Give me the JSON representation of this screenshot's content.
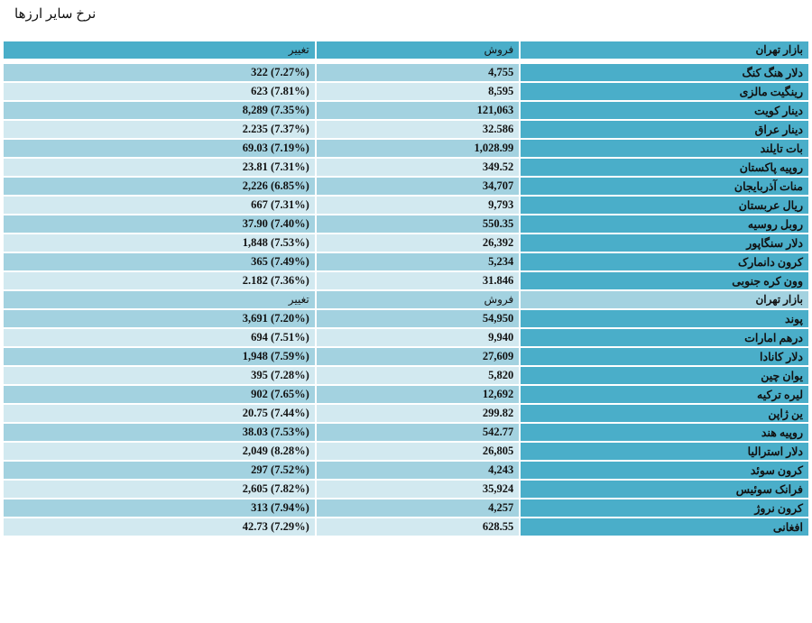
{
  "page": {
    "title": "نرخ سایر ارزها"
  },
  "header": {
    "market": "بازار تهران",
    "sell": "فروش",
    "change": "تغییر"
  },
  "subheader": {
    "market": "بازار تهران",
    "sell": "فروش",
    "change": "تغییر"
  },
  "group1": [
    {
      "name": "دلار هنگ کنگ",
      "sell": "4,755",
      "change": "(7.27%) 322"
    },
    {
      "name": "رینگیت مالزی",
      "sell": "8,595",
      "change": "(7.81%) 623"
    },
    {
      "name": "دینار کویت",
      "sell": "121,063",
      "change": "(7.35%) 8,289"
    },
    {
      "name": "دینار عراق",
      "sell": "32.586",
      "change": "(7.37%) 2.235"
    },
    {
      "name": "بات تایلند",
      "sell": "1,028.99",
      "change": "(7.19%) 69.03"
    },
    {
      "name": "روپیه پاکستان",
      "sell": "349.52",
      "change": "(7.31%) 23.81"
    },
    {
      "name": "منات آذربایجان",
      "sell": "34,707",
      "change": "(6.85%) 2,226"
    },
    {
      "name": "ریال عربستان",
      "sell": "9,793",
      "change": "(7.31%) 667"
    },
    {
      "name": "روبل روسیه",
      "sell": "550.35",
      "change": "(7.40%) 37.90"
    },
    {
      "name": "دلار سنگاپور",
      "sell": "26,392",
      "change": "(7.53%) 1,848"
    },
    {
      "name": "کرون دانمارک",
      "sell": "5,234",
      "change": "(7.49%) 365"
    },
    {
      "name": "وون کره جنوبی",
      "sell": "31.846",
      "change": "(7.36%) 2.182"
    }
  ],
  "group2": [
    {
      "name": "پوند",
      "sell": "54,950",
      "change": "(7.20%) 3,691"
    },
    {
      "name": "درهم امارات",
      "sell": "9,940",
      "change": "(7.51%) 694"
    },
    {
      "name": "دلار کانادا",
      "sell": "27,609",
      "change": "(7.59%) 1,948"
    },
    {
      "name": "یوان چین",
      "sell": "5,820",
      "change": "(7.28%) 395"
    },
    {
      "name": "لیره ترکیه",
      "sell": "12,692",
      "change": "(7.65%) 902"
    },
    {
      "name": "ین ژاپن",
      "sell": "299.82",
      "change": "(7.44%) 20.75"
    },
    {
      "name": "روپیه هند",
      "sell": "542.77",
      "change": "(7.53%) 38.03"
    },
    {
      "name": "دلار استرالیا",
      "sell": "26,805",
      "change": "(8.28%) 2,049"
    },
    {
      "name": "کرون سوئد",
      "sell": "4,243",
      "change": "(7.52%) 297"
    },
    {
      "name": "فرانک سوئیس",
      "sell": "35,924",
      "change": "(7.82%) 2,605"
    },
    {
      "name": "کرون نروژ",
      "sell": "4,257",
      "change": "(7.94%) 313"
    },
    {
      "name": "افغانی",
      "sell": "628.55",
      "change": "(7.29%) 42.73"
    }
  ]
}
